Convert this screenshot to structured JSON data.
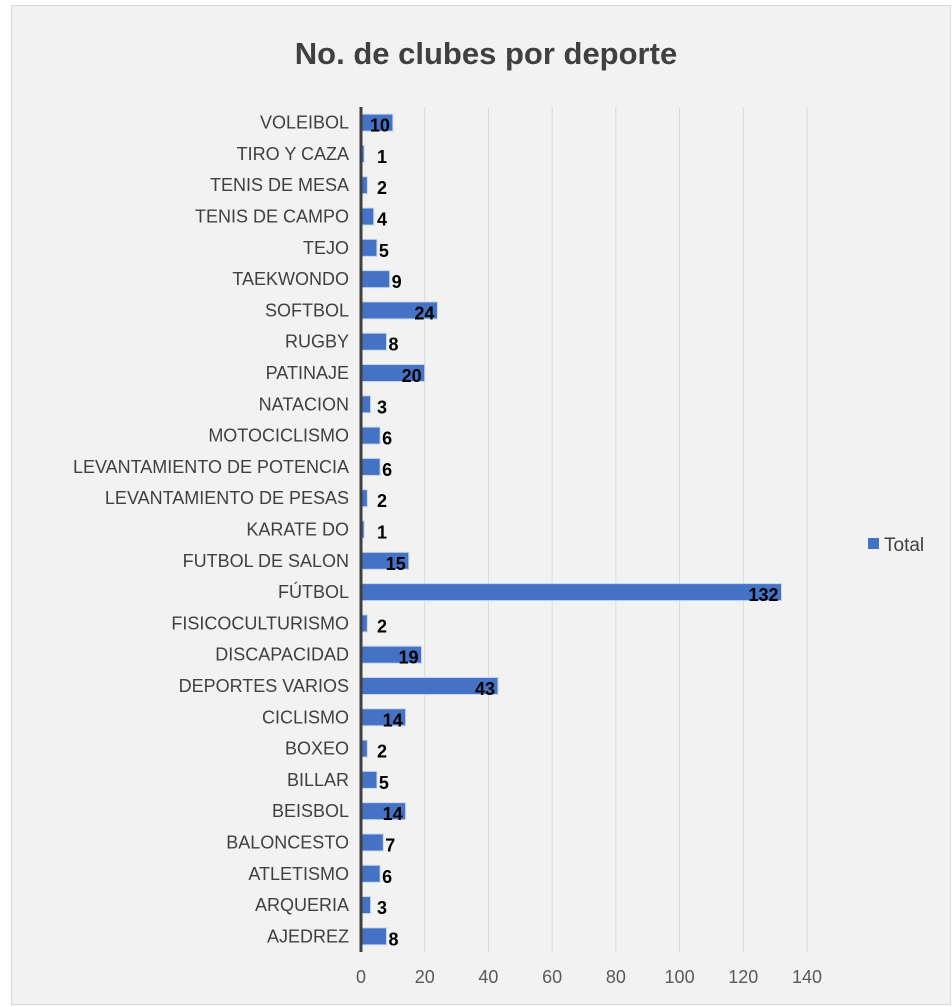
{
  "chart_data": {
    "type": "bar",
    "orientation": "horizontal",
    "title": "No. de clubes por deporte",
    "categories": [
      "VOLEIBOL",
      "TIRO Y CAZA",
      "TENIS DE MESA",
      "TENIS DE CAMPO",
      "TEJO",
      "TAEKWONDO",
      "SOFTBOL",
      "RUGBY",
      "PATINAJE",
      "NATACION",
      "MOTOCICLISMO",
      "LEVANTAMIENTO DE POTENCIA",
      "LEVANTAMIENTO DE PESAS",
      "KARATE DO",
      "FUTBOL DE SALON",
      "FÚTBOL",
      "FISICOCULTURISMO",
      "DISCAPACIDAD",
      "DEPORTES VARIOS",
      "CICLISMO",
      "BOXEO",
      "BILLAR",
      "BEISBOL",
      "BALONCESTO",
      "ATLETISMO",
      "ARQUERIA",
      "AJEDREZ"
    ],
    "series": [
      {
        "name": "Total",
        "values": [
          10,
          1,
          2,
          4,
          5,
          9,
          24,
          8,
          20,
          3,
          6,
          6,
          2,
          1,
          15,
          132,
          2,
          19,
          43,
          14,
          2,
          5,
          14,
          7,
          6,
          3,
          8
        ]
      }
    ],
    "xlim": [
      0,
      140
    ],
    "xticks": [
      0,
      20,
      40,
      60,
      80,
      100,
      120,
      140
    ],
    "grid": true,
    "legend_position": "right",
    "data_labels": true,
    "colors": {
      "bar": "#4472c4",
      "background": "#f2f2f2",
      "gridline": "#d9d9d9",
      "axis": "#404040"
    }
  }
}
